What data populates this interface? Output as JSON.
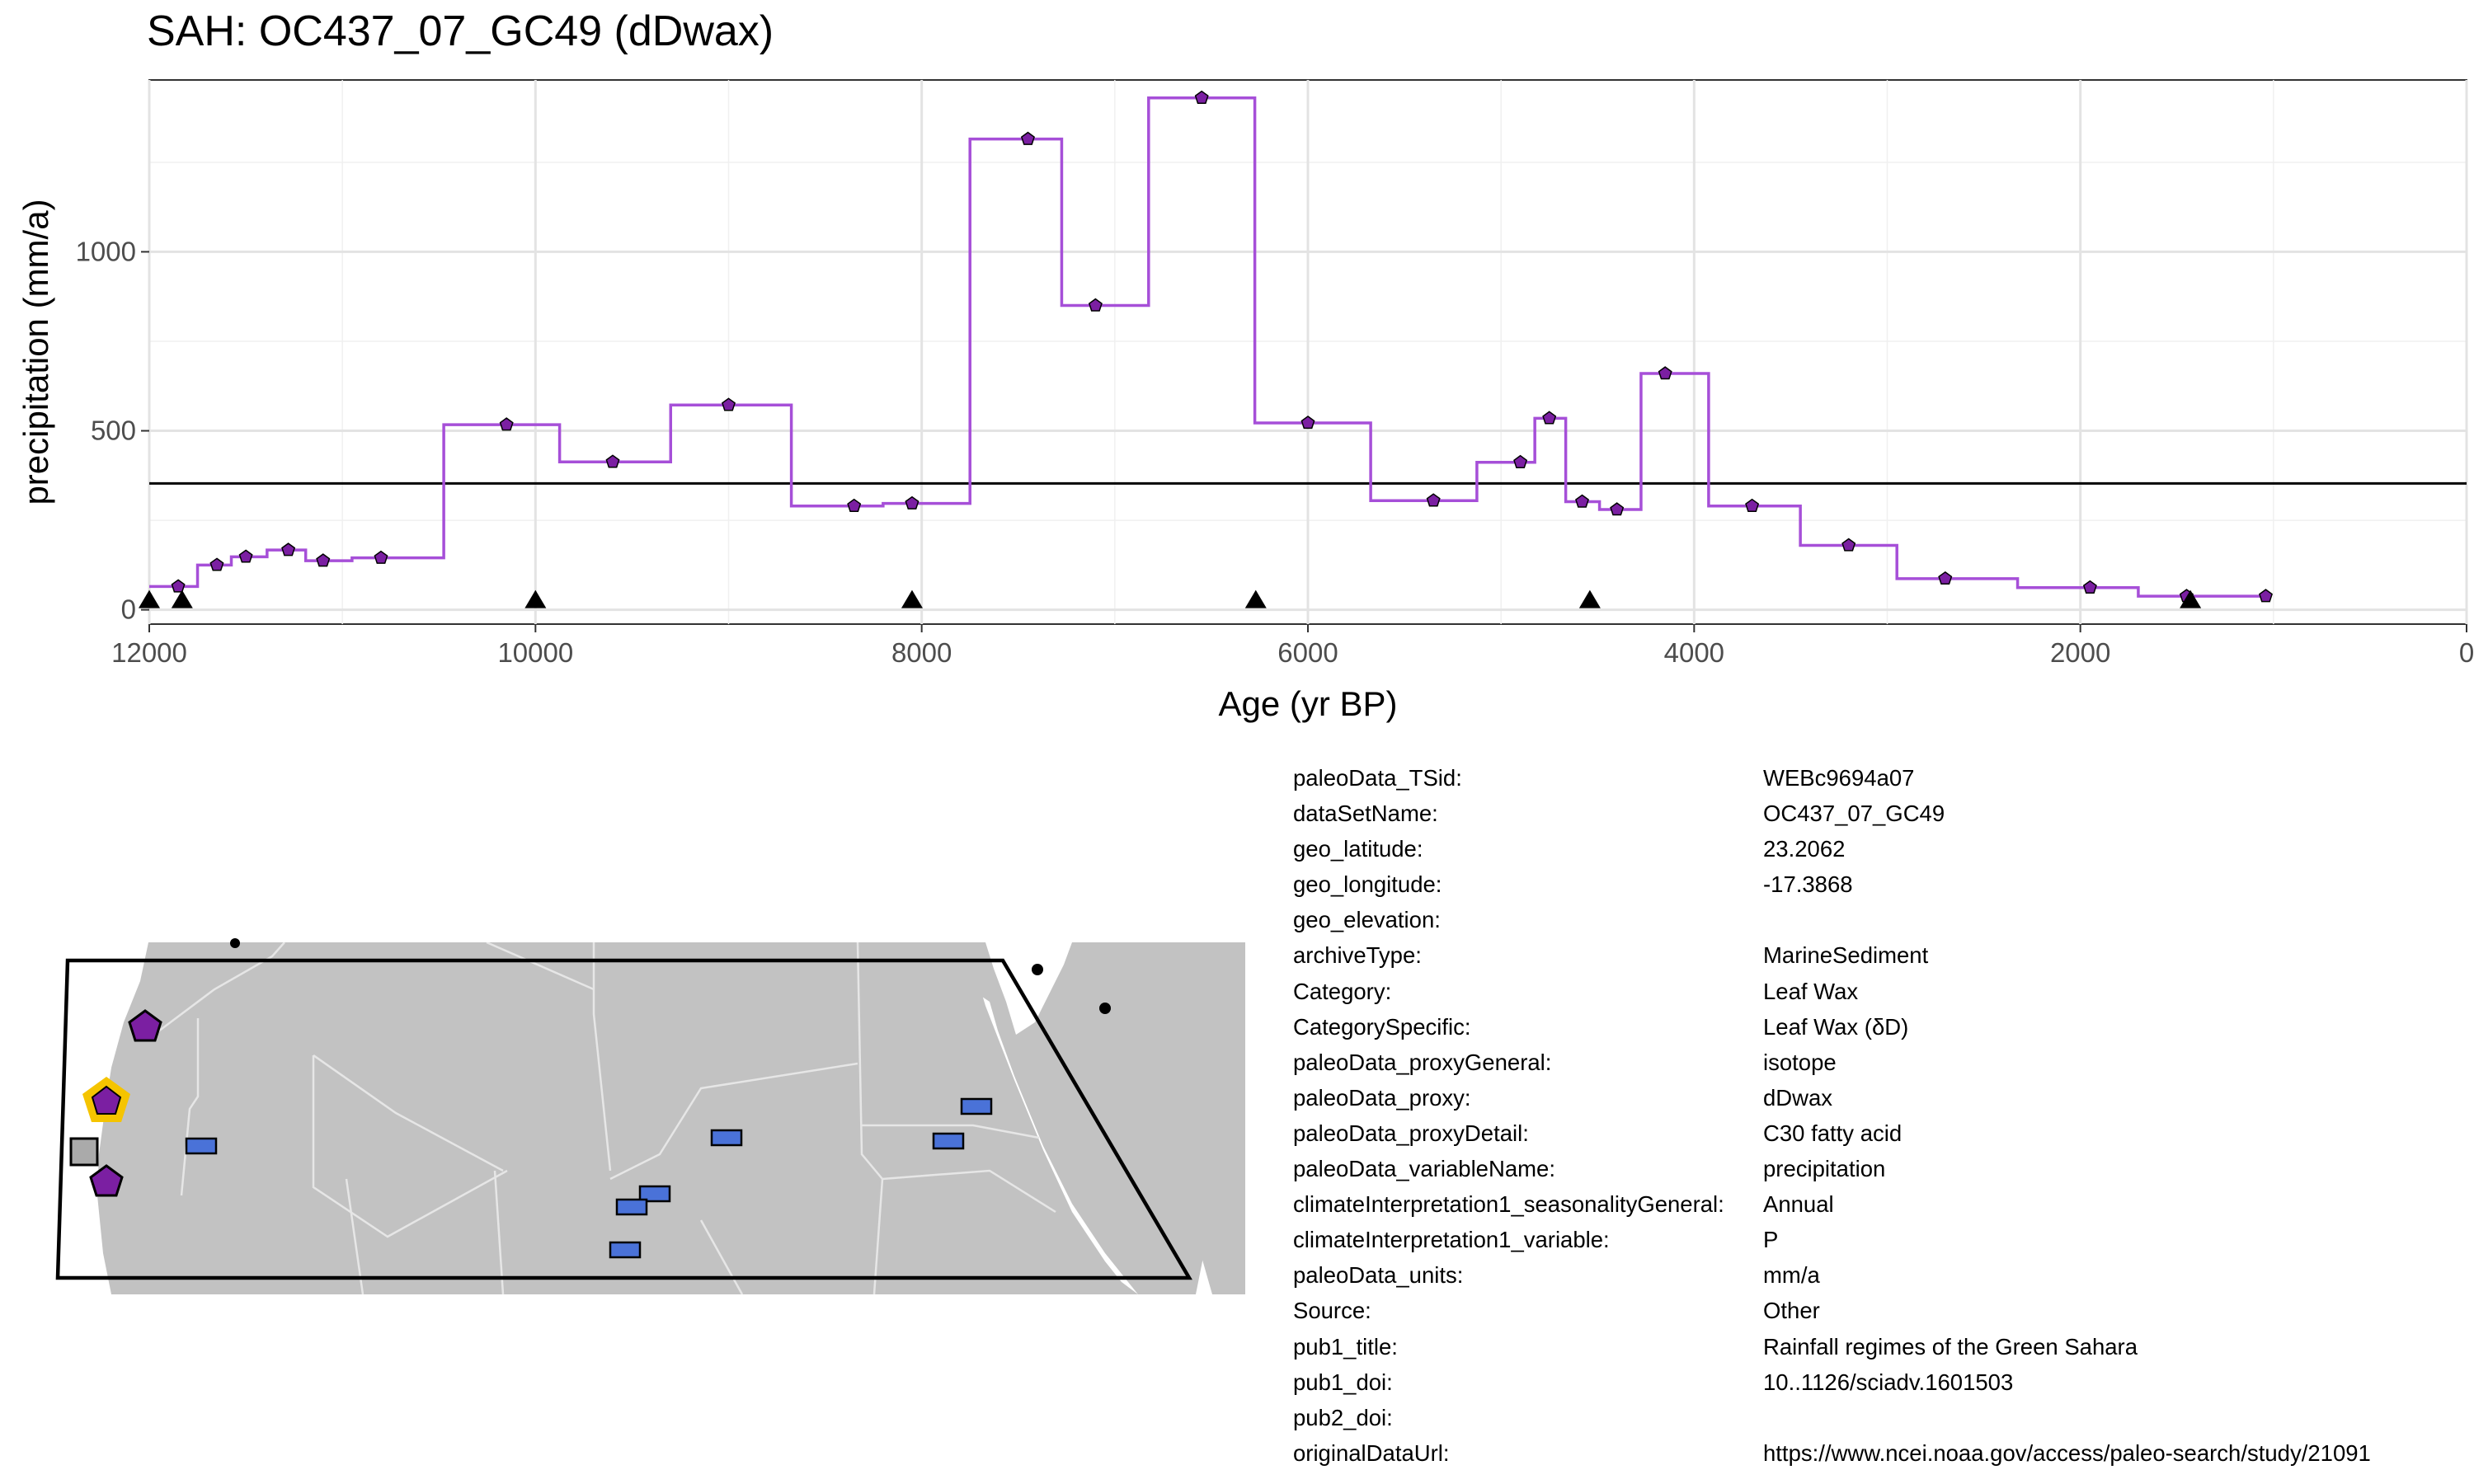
{
  "title": "SAH: OC437_07_GC49 (dDwax)",
  "chart_data": {
    "type": "line",
    "step": true,
    "title": "SAH: OC437_07_GC49 (dDwax)",
    "xlabel": "Age (yr BP)",
    "ylabel": "precipitation (mm/a)",
    "xlim": [
      12000,
      0
    ],
    "ylim": [
      -40,
      1480
    ],
    "x_reversed": true,
    "xticks": [
      12000,
      10000,
      8000,
      6000,
      4000,
      2000,
      0
    ],
    "xtick_labels": [
      "12000",
      "10000",
      "8000",
      "6000",
      "4000",
      "2000",
      "0"
    ],
    "yticks": [
      0,
      500,
      1000
    ],
    "ytick_labels": [
      "0",
      "500",
      "1000"
    ],
    "grid": true,
    "line_color": "#a64fd8",
    "point_color": "#7b1fa2",
    "series": [
      {
        "x": [
          11850,
          11650,
          11500,
          11280,
          11100,
          10800,
          10150,
          9600,
          9000,
          8350,
          8050,
          7450,
          7100,
          6550,
          6000,
          5350,
          4900,
          4750,
          4580,
          4400,
          4150,
          3700,
          3200,
          2700,
          1950,
          1450,
          1040
        ],
        "values": [
          65,
          125,
          148,
          167,
          137,
          145,
          517,
          413,
          572,
          290,
          297,
          1315,
          850,
          1430,
          522,
          305,
          412,
          535,
          302,
          280,
          660,
          290,
          180,
          87,
          62,
          38,
          38
        ]
      }
    ],
    "reference_line": 353,
    "age_markers": [
      12000,
      11830,
      10000,
      8050,
      6270,
      4540,
      1430
    ]
  },
  "metadata": [
    {
      "key": "paleoData_TSid:",
      "value": "WEBc9694a07"
    },
    {
      "key": "dataSetName:",
      "value": "OC437_07_GC49"
    },
    {
      "key": "geo_latitude:",
      "value": "23.2062"
    },
    {
      "key": "geo_longitude:",
      "value": "-17.3868"
    },
    {
      "key": "geo_elevation:",
      "value": ""
    },
    {
      "key": "archiveType:",
      "value": "MarineSediment"
    },
    {
      "key": "Category:",
      "value": "Leaf Wax"
    },
    {
      "key": "CategorySpecific:",
      "value": "Leaf Wax (δD)"
    },
    {
      "key": "paleoData_proxyGeneral:",
      "value": "isotope"
    },
    {
      "key": "paleoData_proxy:",
      "value": "dDwax"
    },
    {
      "key": "paleoData_proxyDetail:",
      "value": "C30 fatty acid"
    },
    {
      "key": "paleoData_variableName:",
      "value": "precipitation"
    },
    {
      "key": "climateInterpretation1_seasonalityGeneral:",
      "value": "Annual"
    },
    {
      "key": "climateInterpretation1_variable:",
      "value": "P"
    },
    {
      "key": "paleoData_units:",
      "value": "mm/a"
    },
    {
      "key": "Source:",
      "value": "Other"
    },
    {
      "key": "pub1_title:",
      "value": "Rainfall regimes of the Green Sahara"
    },
    {
      "key": "pub1_doi:",
      "value": "10..1126/sciadv.1601503"
    },
    {
      "key": "pub2_doi:",
      "value": ""
    },
    {
      "key": "originalDataUrl:",
      "value": "https://www.ncei.noaa.gov/access/paleo-search/study/21091"
    }
  ],
  "map": {
    "land_color": "#c2c2c2",
    "border_color": "#e6e6e6",
    "outline_color": "#000000",
    "site_marker_color": "#7b1fa2",
    "highlight_color": "#f5c400",
    "other_site_color": "#4a72d8",
    "grey_site_color": "#aaaaaa"
  }
}
